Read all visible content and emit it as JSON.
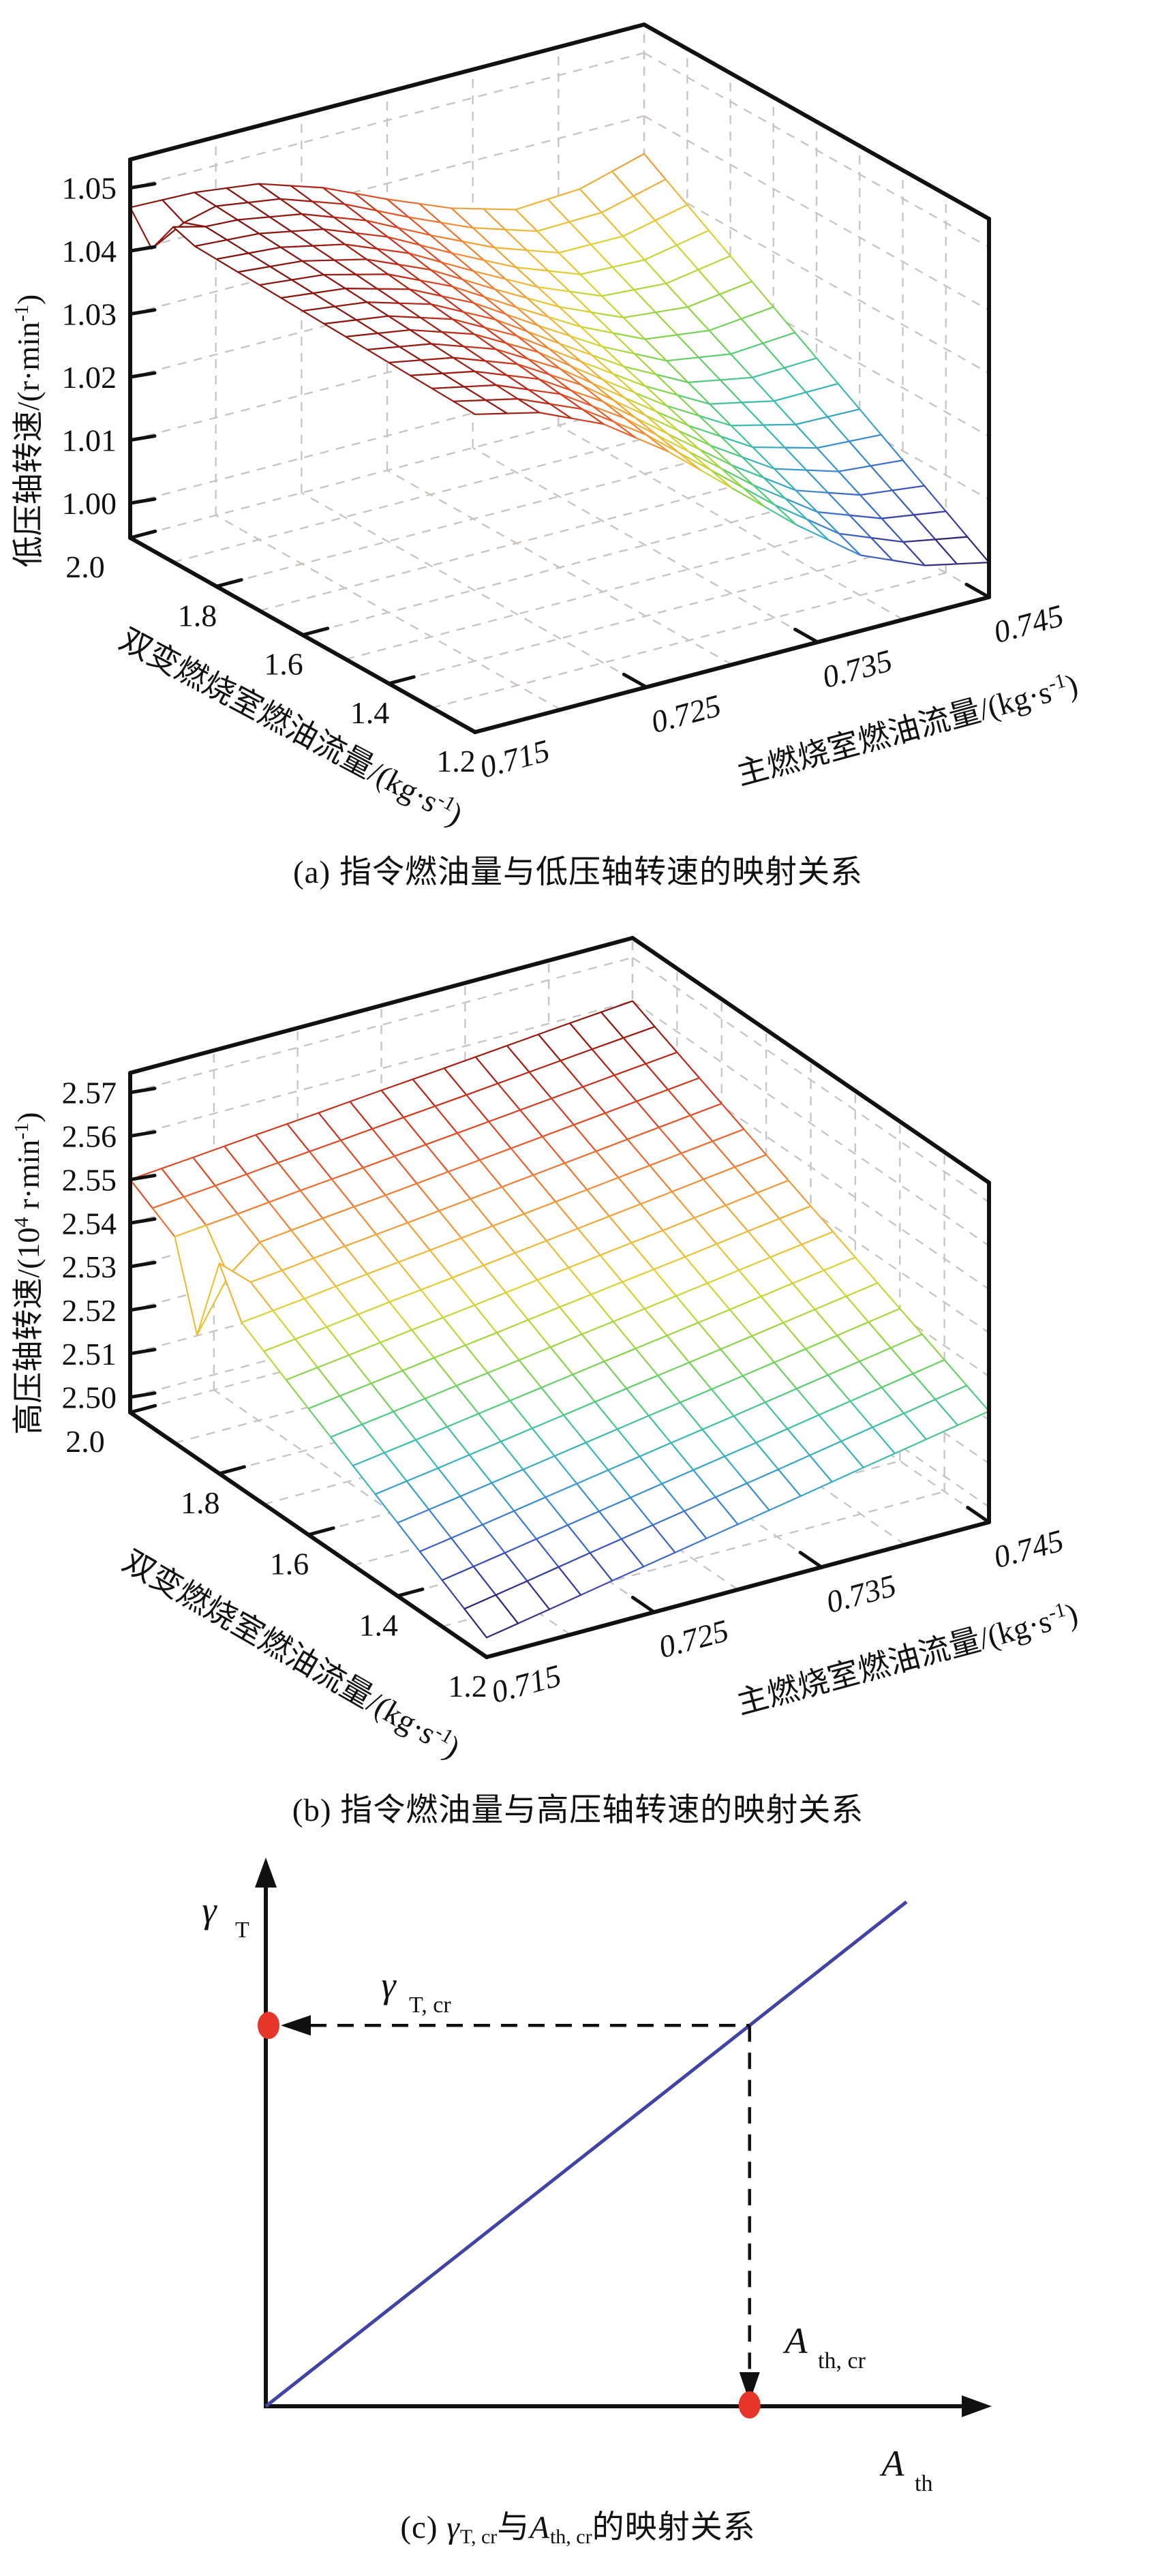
{
  "figure": {
    "background": "#ffffff",
    "caption_a": "(a) 指令燃油量与低压轴转速的映射关系",
    "caption_b": "(b) 指令燃油量与高压轴转速的映射关系",
    "caption_c_parts": {
      "prefix": "(c) ",
      "gamma": "γ",
      "gamma_sub": "T, cr",
      "conj": "与",
      "A": "A",
      "A_sub": "th, cr",
      "suffix": "的映射关系"
    }
  },
  "chart_data": [
    {
      "id": "a",
      "type": "surface3d-mesh",
      "title": "(a) 指令燃油量与低压轴转速的映射关系",
      "x_axis": {
        "label": "主燃烧室燃油流量/(kg·s⁻¹)",
        "ticks": [
          "0.715",
          "0.725",
          "0.735",
          "0.745"
        ],
        "range": [
          0.715,
          0.745
        ],
        "grid_step": 0.005
      },
      "y_axis": {
        "label": "双变燃烧室燃油流量/(kg·s⁻¹)",
        "ticks": [
          "1.2",
          "1.4",
          "1.6",
          "1.8",
          "2.0"
        ],
        "range": [
          1.2,
          2.0
        ],
        "grid_step": 0.1
      },
      "z_axis": {
        "label": "低压轴转速/(r·min⁻¹)",
        "ticks": [
          "1.00",
          "1.01",
          "1.02",
          "1.03",
          "1.04",
          "1.05"
        ],
        "range": [
          0.9945,
          1.0545
        ]
      },
      "grid_on": true,
      "mesh": {
        "nx": 16,
        "ny": 16
      },
      "x_samples": [
        0.715,
        0.71875,
        0.7225,
        0.72625,
        0.73,
        0.73375,
        0.7375,
        0.74125,
        0.745
      ],
      "y_samples": [
        1.2,
        1.4,
        1.6,
        1.8,
        2.0
      ],
      "z_values": [
        [
          1.0449,
          1.0454,
          1.0459,
          1.0464,
          1.0469
        ],
        [
          1.0425,
          1.0435,
          1.0446,
          1.0456,
          1.0466
        ],
        [
          1.038,
          1.0398,
          1.0416,
          1.0434,
          1.0453
        ],
        [
          1.031,
          1.0338,
          1.0365,
          1.0393,
          1.042
        ],
        [
          1.0225,
          1.0263,
          1.03,
          1.0338,
          1.0375
        ],
        [
          1.014,
          1.0189,
          1.0237,
          1.0286,
          1.0334
        ],
        [
          1.0065,
          1.0125,
          1.0185,
          1.0245,
          1.0305
        ],
        [
          1.0022,
          1.0094,
          1.0166,
          1.0238,
          1.0311
        ],
        [
          1.0,
          1.0085,
          1.017,
          1.0255,
          1.034
        ]
      ],
      "color_range": [
        1.0,
        1.047
      ],
      "edge_artifacts": [
        {
          "ix": 0,
          "iy": 15,
          "dz": -0.0045
        },
        {
          "ix": 0,
          "iy": 14,
          "dz": 0.001
        },
        {
          "ix": 1,
          "iy": 15,
          "dz": -0.0015
        }
      ]
    },
    {
      "id": "b",
      "type": "surface3d-mesh",
      "title": "(b) 指令燃油量与高压轴转速的映射关系",
      "x_axis": {
        "label": "主燃烧室燃油流量/(kg·s⁻¹)",
        "ticks": [
          "0.715",
          "0.725",
          "0.735",
          "0.745"
        ],
        "range": [
          0.715,
          0.745
        ],
        "grid_step": 0.005
      },
      "y_axis": {
        "label": "双变燃烧室燃油流量/(kg·s⁻¹)",
        "ticks": [
          "1.2",
          "1.4",
          "1.6",
          "1.8",
          "2.0"
        ],
        "range": [
          1.2,
          2.0
        ],
        "grid_step": 0.1
      },
      "z_axis": {
        "label": "高压轴转速/(10⁴ r·min⁻¹)",
        "ticks": [
          "2.50",
          "2.51",
          "2.52",
          "2.53",
          "2.54",
          "2.55",
          "2.56",
          "2.57"
        ],
        "range": [
          2.4965,
          2.5745
        ]
      },
      "grid_on": true,
      "mesh": {
        "nx": 16,
        "ny": 16
      },
      "x_samples": [
        0.715,
        0.71875,
        0.7225,
        0.72625,
        0.73,
        0.73375,
        0.7375,
        0.74125,
        0.745
      ],
      "y_samples": [
        1.2,
        1.4,
        1.6,
        1.8,
        2.0
      ],
      "z_values": [
        [
          2.501,
          2.5133,
          2.5255,
          2.5378,
          2.55
        ],
        [
          2.5036,
          2.5155,
          2.5274,
          2.5393,
          2.5512
        ],
        [
          2.5063,
          2.5178,
          2.5294,
          2.541,
          2.5525
        ],
        [
          2.5089,
          2.5201,
          2.5313,
          2.5425,
          2.5537
        ],
        [
          2.5115,
          2.5224,
          2.5333,
          2.5441,
          2.555
        ],
        [
          2.5141,
          2.5246,
          2.5352,
          2.5457,
          2.5562
        ],
        [
          2.5168,
          2.5269,
          2.5371,
          2.5473,
          2.5575
        ],
        [
          2.5194,
          2.5292,
          2.5391,
          2.5489,
          2.5588
        ],
        [
          2.522,
          2.5315,
          2.541,
          2.5505,
          2.56
        ]
      ],
      "color_range": [
        2.501,
        2.56
      ],
      "edge_artifacts": [
        {
          "ix": 0,
          "iy": 13,
          "dz": -0.016
        },
        {
          "ix": 1,
          "iy": 13,
          "dz": -0.005
        },
        {
          "ix": 0,
          "iy": 12,
          "dz": 0.007
        }
      ]
    },
    {
      "id": "c",
      "type": "line",
      "title": "(c) γT, cr与Ath, cr的映射关系",
      "x_axis": {
        "label_main": "A",
        "label_sub": "th"
      },
      "y_axis": {
        "label_main": "γ",
        "label_sub": "T"
      },
      "line": {
        "color": "#4343a5",
        "x0": 0,
        "y0": 0,
        "x1": 1,
        "y1": 1
      },
      "critical_fraction": 0.755,
      "annotations": {
        "y_point_label": {
          "main": "γ",
          "sub": "T, cr"
        },
        "x_point_label": {
          "main": "A",
          "sub": "th, cr"
        }
      },
      "point_color": "#e8352a",
      "dash_color": "#111111",
      "axis_color": "#111111"
    }
  ],
  "colormap": [
    "#2b1a4e",
    "#38308f",
    "#3f57c1",
    "#3f7fd4",
    "#3aa5c9",
    "#3cbfa9",
    "#55cc7a",
    "#85d44f",
    "#b4d83c",
    "#dcd336",
    "#efb93a",
    "#f29a39",
    "#ee7434",
    "#df4d28",
    "#c52f1d",
    "#9c1a12",
    "#7c0f0c"
  ],
  "grid_color": "#cbc5c2",
  "box_color": "#111111"
}
